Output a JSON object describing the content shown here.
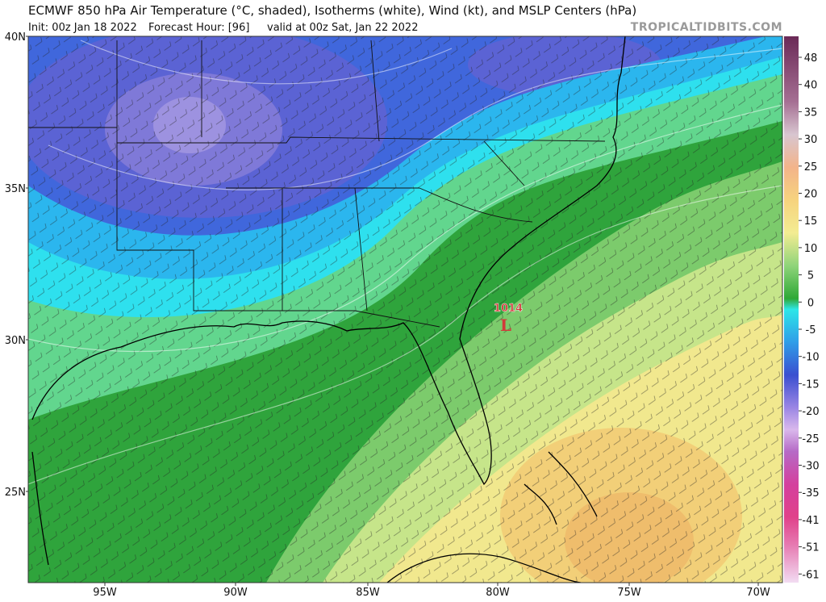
{
  "header": {
    "title": "ECMWF 850 hPa Air Temperature (°C, shaded), Isotherms (white), Wind (kt), and MSLP Centers (hPa)",
    "init": "Init: 00z Jan 18 2022",
    "forecast_hour": "Forecast Hour: [96]",
    "valid": "valid at 00z Sat, Jan 22 2022",
    "watermark": "TROPICALTIDBITS.COM"
  },
  "map": {
    "lat_labels": [
      "40N",
      "35N",
      "30N",
      "25N"
    ],
    "lon_labels": [
      "95W",
      "90W",
      "85W",
      "80W",
      "75W",
      "70W"
    ],
    "low": {
      "pressure": "1014",
      "symbol": "L"
    }
  },
  "colorbar": {
    "labels": [
      48,
      40,
      35,
      30,
      25,
      20,
      15,
      10,
      5,
      0,
      -5,
      -10,
      -15,
      -20,
      -25,
      -30,
      -35,
      -41,
      -51,
      -61
    ]
  }
}
